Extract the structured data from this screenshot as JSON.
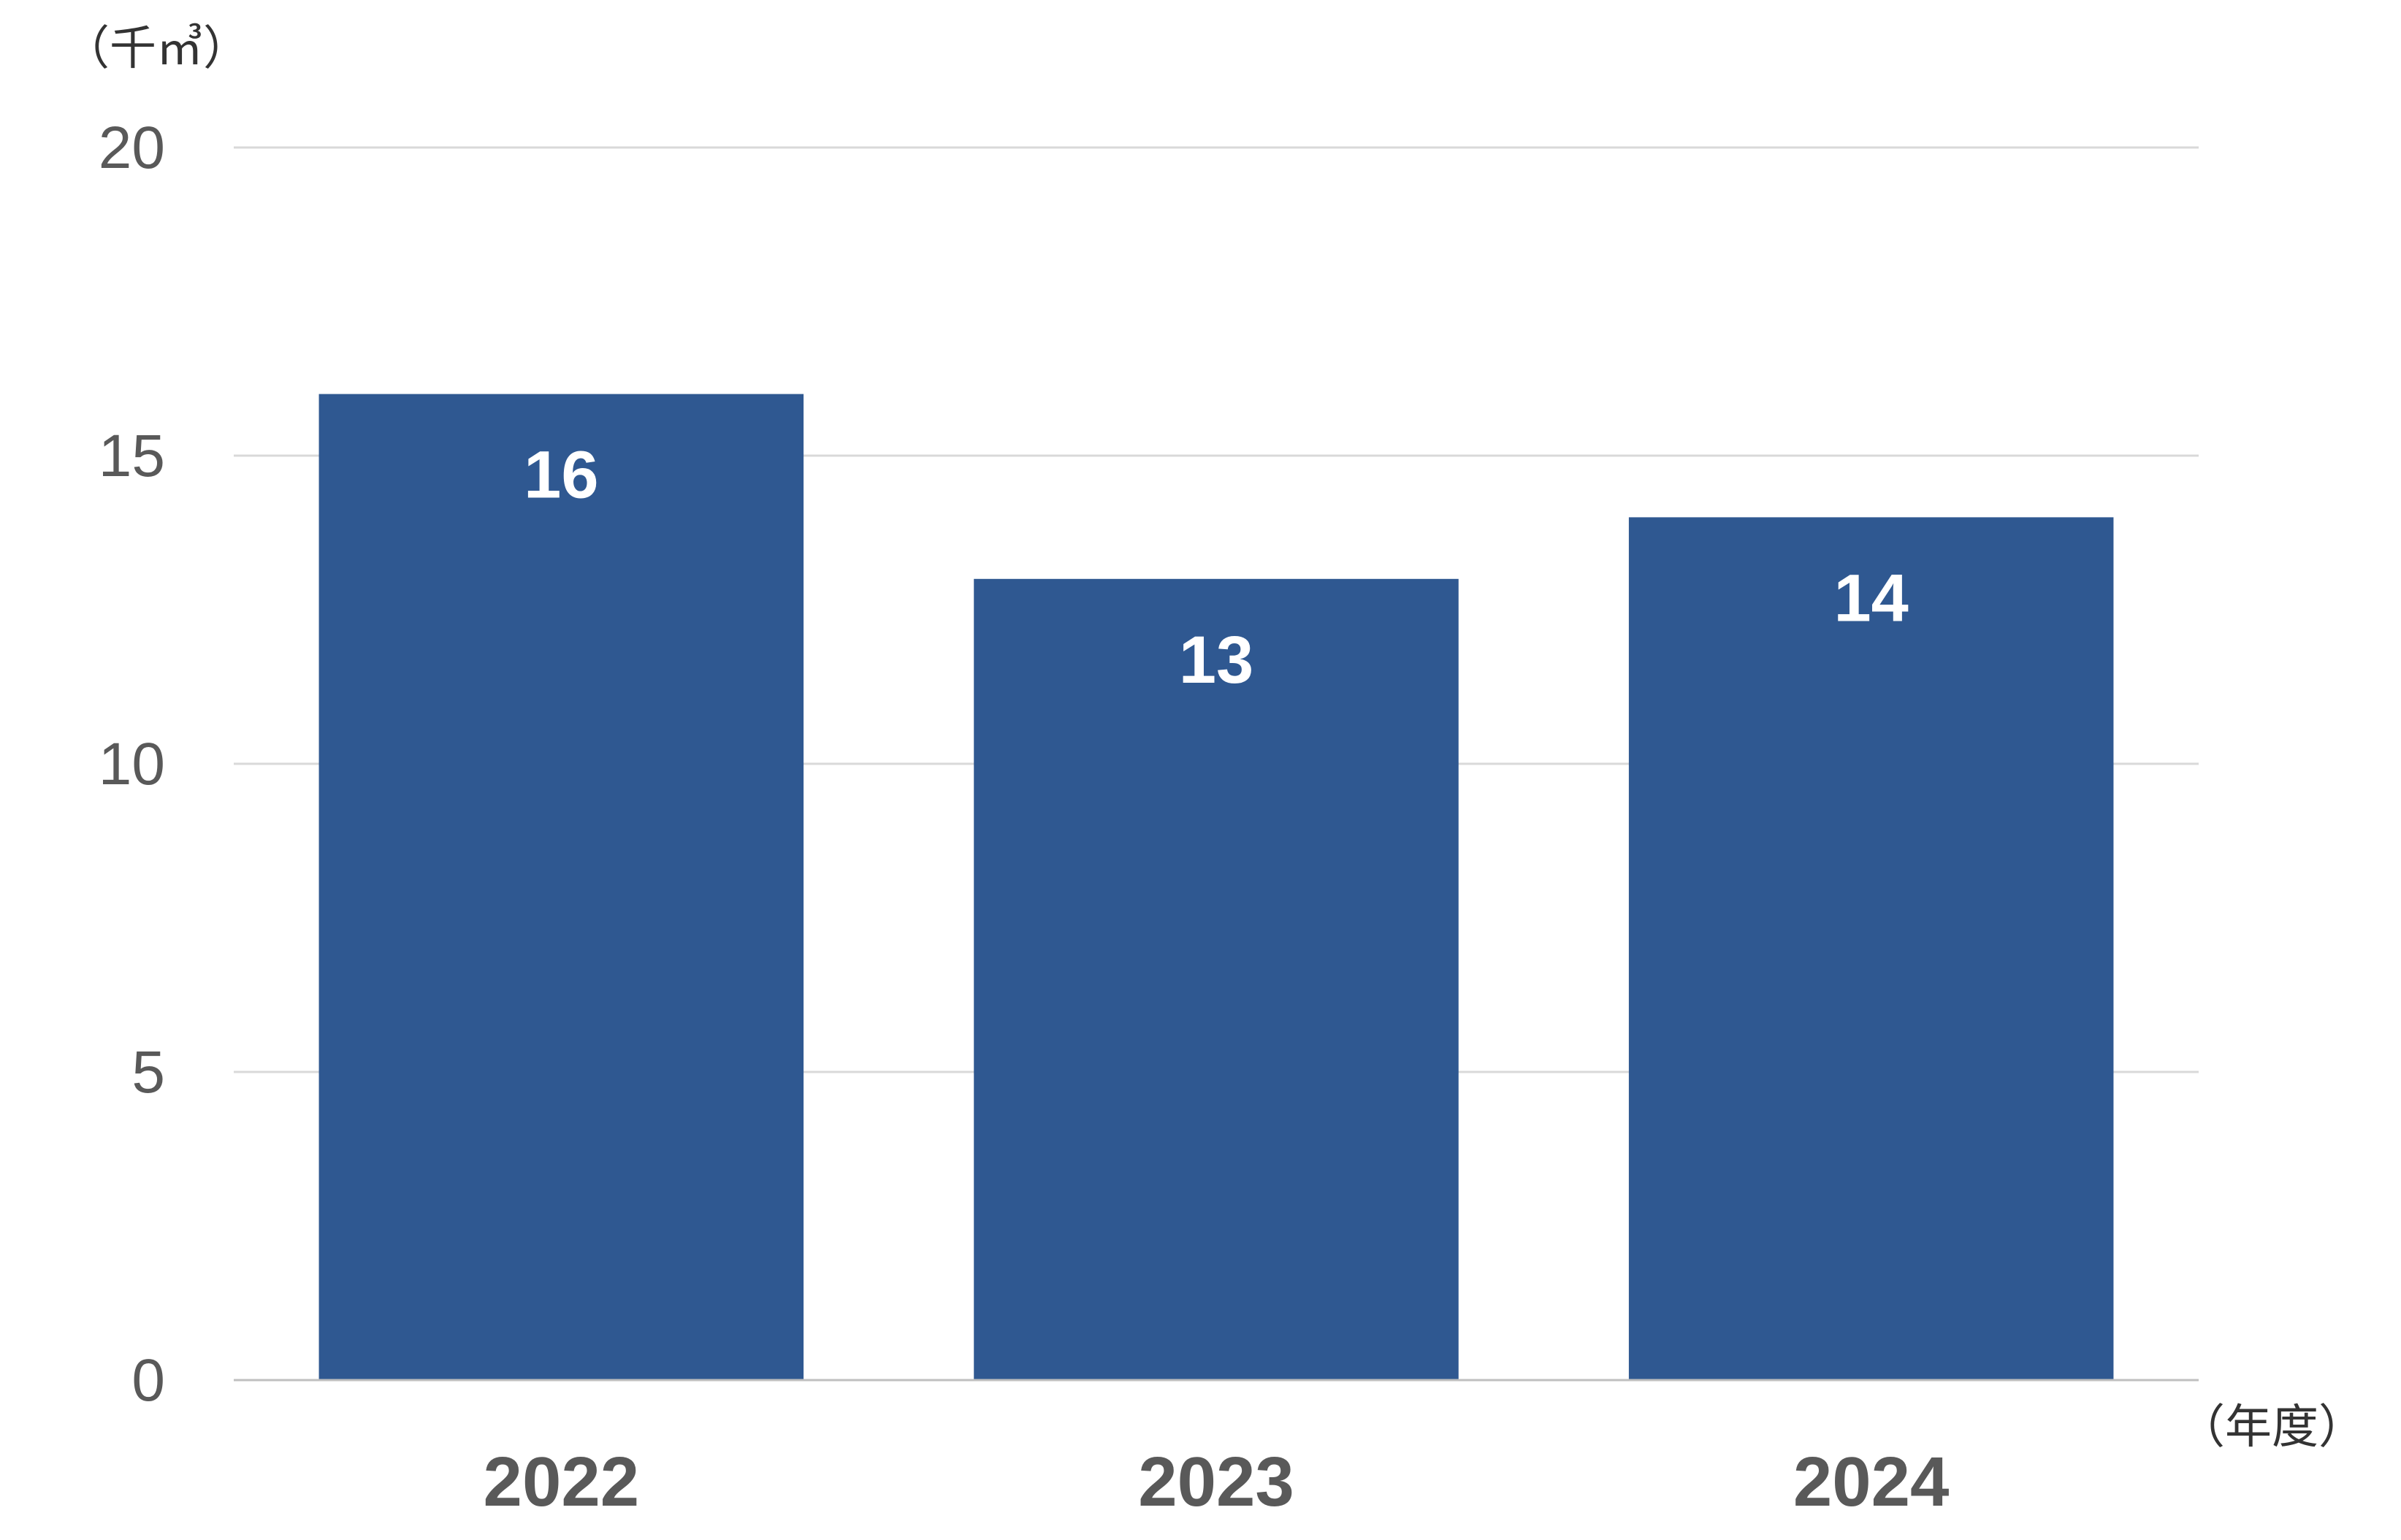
{
  "chart_data": {
    "type": "bar",
    "ylabel": "（千㎥）",
    "xlabel": "（年度）",
    "categories": [
      "2022",
      "2023",
      "2024"
    ],
    "values": [
      16,
      13,
      14
    ],
    "data_labels": [
      "16",
      "13",
      "14"
    ],
    "ylim": [
      0,
      20
    ],
    "yticks": [
      0,
      5,
      10,
      15,
      20
    ],
    "ytick_labels": [
      "0",
      "5",
      "10",
      "15",
      "20"
    ],
    "grid": true,
    "legend": "none",
    "bar_color": "#2f5891"
  }
}
